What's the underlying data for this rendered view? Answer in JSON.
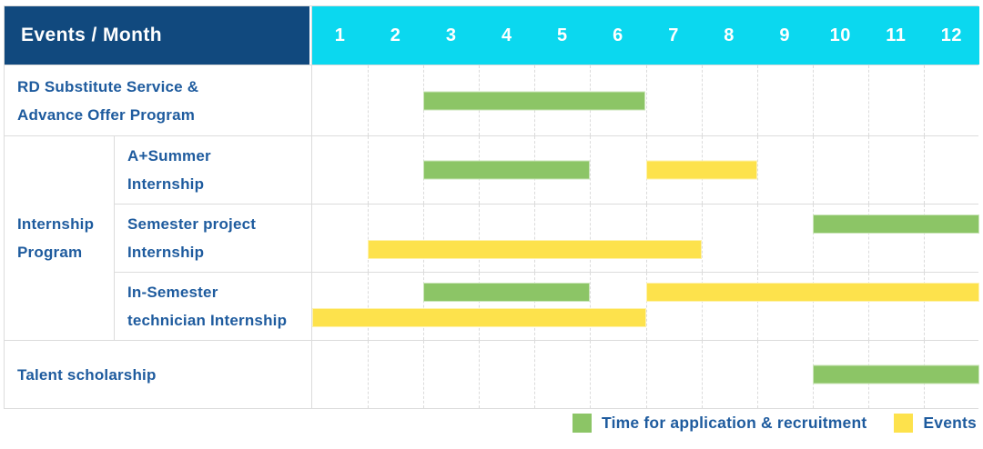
{
  "title": "Events / Month",
  "months": [
    "1",
    "2",
    "3",
    "4",
    "5",
    "6",
    "7",
    "8",
    "9",
    "10",
    "11",
    "12"
  ],
  "colors": {
    "header_bg": "#11497e",
    "months_bg": "#0bd8ef",
    "label_text": "#1e5b9e",
    "green": "#8cc566",
    "yellow": "#fde24c",
    "grid_line": "#dcdcdc"
  },
  "legend": [
    {
      "label": "Time for application & recruitment",
      "color_key": "green"
    },
    {
      "label": "Events",
      "color_key": "yellow"
    }
  ],
  "chart_data": {
    "type": "bar",
    "variant": "gantt-timeline",
    "title": "Events / Month",
    "xlabel": "Month",
    "x_categories": [
      1,
      2,
      3,
      4,
      5,
      6,
      7,
      8,
      9,
      10,
      11,
      12
    ],
    "series_legend": {
      "green": "Time for application & recruitment",
      "yellow": "Events"
    },
    "rows": [
      {
        "group": null,
        "label": "RD Substitute Service &\nAdvance Offer Program",
        "lines": [
          [
            {
              "series": "Time for application & recruitment",
              "color": "green",
              "start_month": 3,
              "end_month": 6
            }
          ]
        ]
      },
      {
        "group": "Internship\nProgram",
        "label": "A+Summer\nInternship",
        "lines": [
          [
            {
              "series": "Time for application & recruitment",
              "color": "green",
              "start_month": 3,
              "end_month": 5
            },
            {
              "series": "Events",
              "color": "yellow",
              "start_month": 7,
              "end_month": 8
            }
          ]
        ]
      },
      {
        "group": "Internship\nProgram",
        "label": "Semester project\nInternship",
        "lines": [
          [
            {
              "series": "Time for application & recruitment",
              "color": "green",
              "start_month": 10,
              "end_month": 12
            }
          ],
          [
            {
              "series": "Events",
              "color": "yellow",
              "start_month": 2,
              "end_month": 7
            }
          ]
        ]
      },
      {
        "group": "Internship\nProgram",
        "label": "In-Semester\ntechnician Internship",
        "lines": [
          [
            {
              "series": "Time for application & recruitment",
              "color": "green",
              "start_month": 3,
              "end_month": 5
            },
            {
              "series": "Events",
              "color": "yellow",
              "start_month": 7,
              "end_month": 12
            }
          ],
          [
            {
              "series": "Events",
              "color": "yellow",
              "start_month": 1,
              "end_month": 6
            }
          ]
        ]
      },
      {
        "group": null,
        "label": "Talent scholarship",
        "lines": [
          [
            {
              "series": "Time for application & recruitment",
              "color": "green",
              "start_month": 10,
              "end_month": 12
            }
          ]
        ]
      }
    ]
  }
}
